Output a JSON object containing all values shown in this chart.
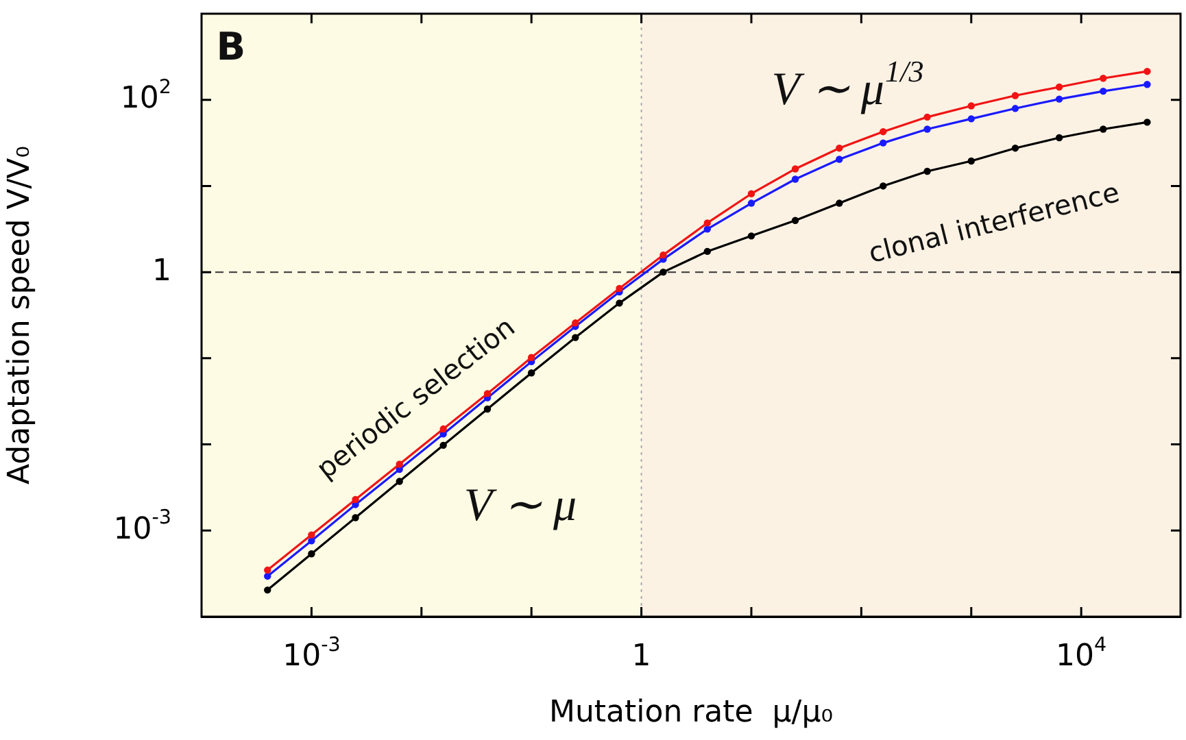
{
  "chart_data": {
    "type": "line",
    "xlabel": "Mutation rate  μ/μ₀",
    "ylabel": "Adaptation speed V/V₀",
    "x": [
      0.000398,
      0.001,
      0.00251,
      0.00631,
      0.0158,
      0.0398,
      0.1,
      0.251,
      0.631,
      1.58,
      3.98,
      10,
      25.1,
      63.1,
      158,
      398,
      1000,
      2512,
      6310,
      15849,
      39811
    ],
    "series": [
      {
        "color": "#f01414",
        "values": [
          0.000347,
          0.000891,
          0.00229,
          0.00589,
          0.0151,
          0.0389,
          0.102,
          0.257,
          0.646,
          1.58,
          3.72,
          8.13,
          15.8,
          27.5,
          42.7,
          63.1,
          85.1,
          112,
          141,
          178,
          214
        ]
      },
      {
        "color": "#1a1aff",
        "values": [
          0.000295,
          0.000759,
          0.002,
          0.00513,
          0.0132,
          0.0347,
          0.0912,
          0.234,
          0.589,
          1.41,
          3.16,
          6.31,
          12,
          20.4,
          31.6,
          45.7,
          60.3,
          79.4,
          102,
          126,
          151
        ]
      },
      {
        "color": "#000000",
        "values": [
          0.000204,
          0.000537,
          0.00141,
          0.00372,
          0.00977,
          0.0257,
          0.0676,
          0.174,
          0.437,
          1,
          1.74,
          2.63,
          3.98,
          6.31,
          10,
          14.8,
          19.5,
          27.5,
          36.3,
          45.7,
          55
        ]
      }
    ],
    "xlim": [
      0.0001,
      80000
    ],
    "ylim": [
      0.0001,
      1000
    ],
    "xticks": [
      {
        "value": 0.001,
        "label": "10$^{-3}$"
      },
      {
        "value": 0.01,
        "label": null
      },
      {
        "value": 0.1,
        "label": null
      },
      {
        "value": 1,
        "label": "1"
      },
      {
        "value": 10,
        "label": null
      },
      {
        "value": 100,
        "label": null
      },
      {
        "value": 1000,
        "label": null
      },
      {
        "value": 10000,
        "label": "10$^{4}$"
      }
    ],
    "yticks": [
      {
        "value": 0.001,
        "label": "10$^{-3}$"
      },
      {
        "value": 0.01,
        "label": null
      },
      {
        "value": 0.1,
        "label": null
      },
      {
        "value": 1,
        "label": "1"
      },
      {
        "value": 10,
        "label": null
      },
      {
        "value": 100,
        "label": "10$^{2}$"
      }
    ],
    "log": "xy",
    "grid": false,
    "marker": "circle",
    "line_style": "solid",
    "bands": [
      {
        "axis": "x",
        "from": 0.0001,
        "to": 1,
        "color": "#fdfbe3"
      },
      {
        "axis": "x",
        "from": 1,
        "to": 80000,
        "color": "#fcf2e4"
      }
    ],
    "ref_lines": [
      {
        "axis": "y",
        "value": 1,
        "line_style": "dashed",
        "color": "#333333"
      },
      {
        "axis": "x",
        "value": 1,
        "line_style": "dotted",
        "color": "#aaaaaa"
      }
    ],
    "annotations": [
      "B",
      "V ∼ μ$^{1/3}$",
      "V ∼ μ",
      "periodic selection",
      "clonal interference"
    ]
  }
}
